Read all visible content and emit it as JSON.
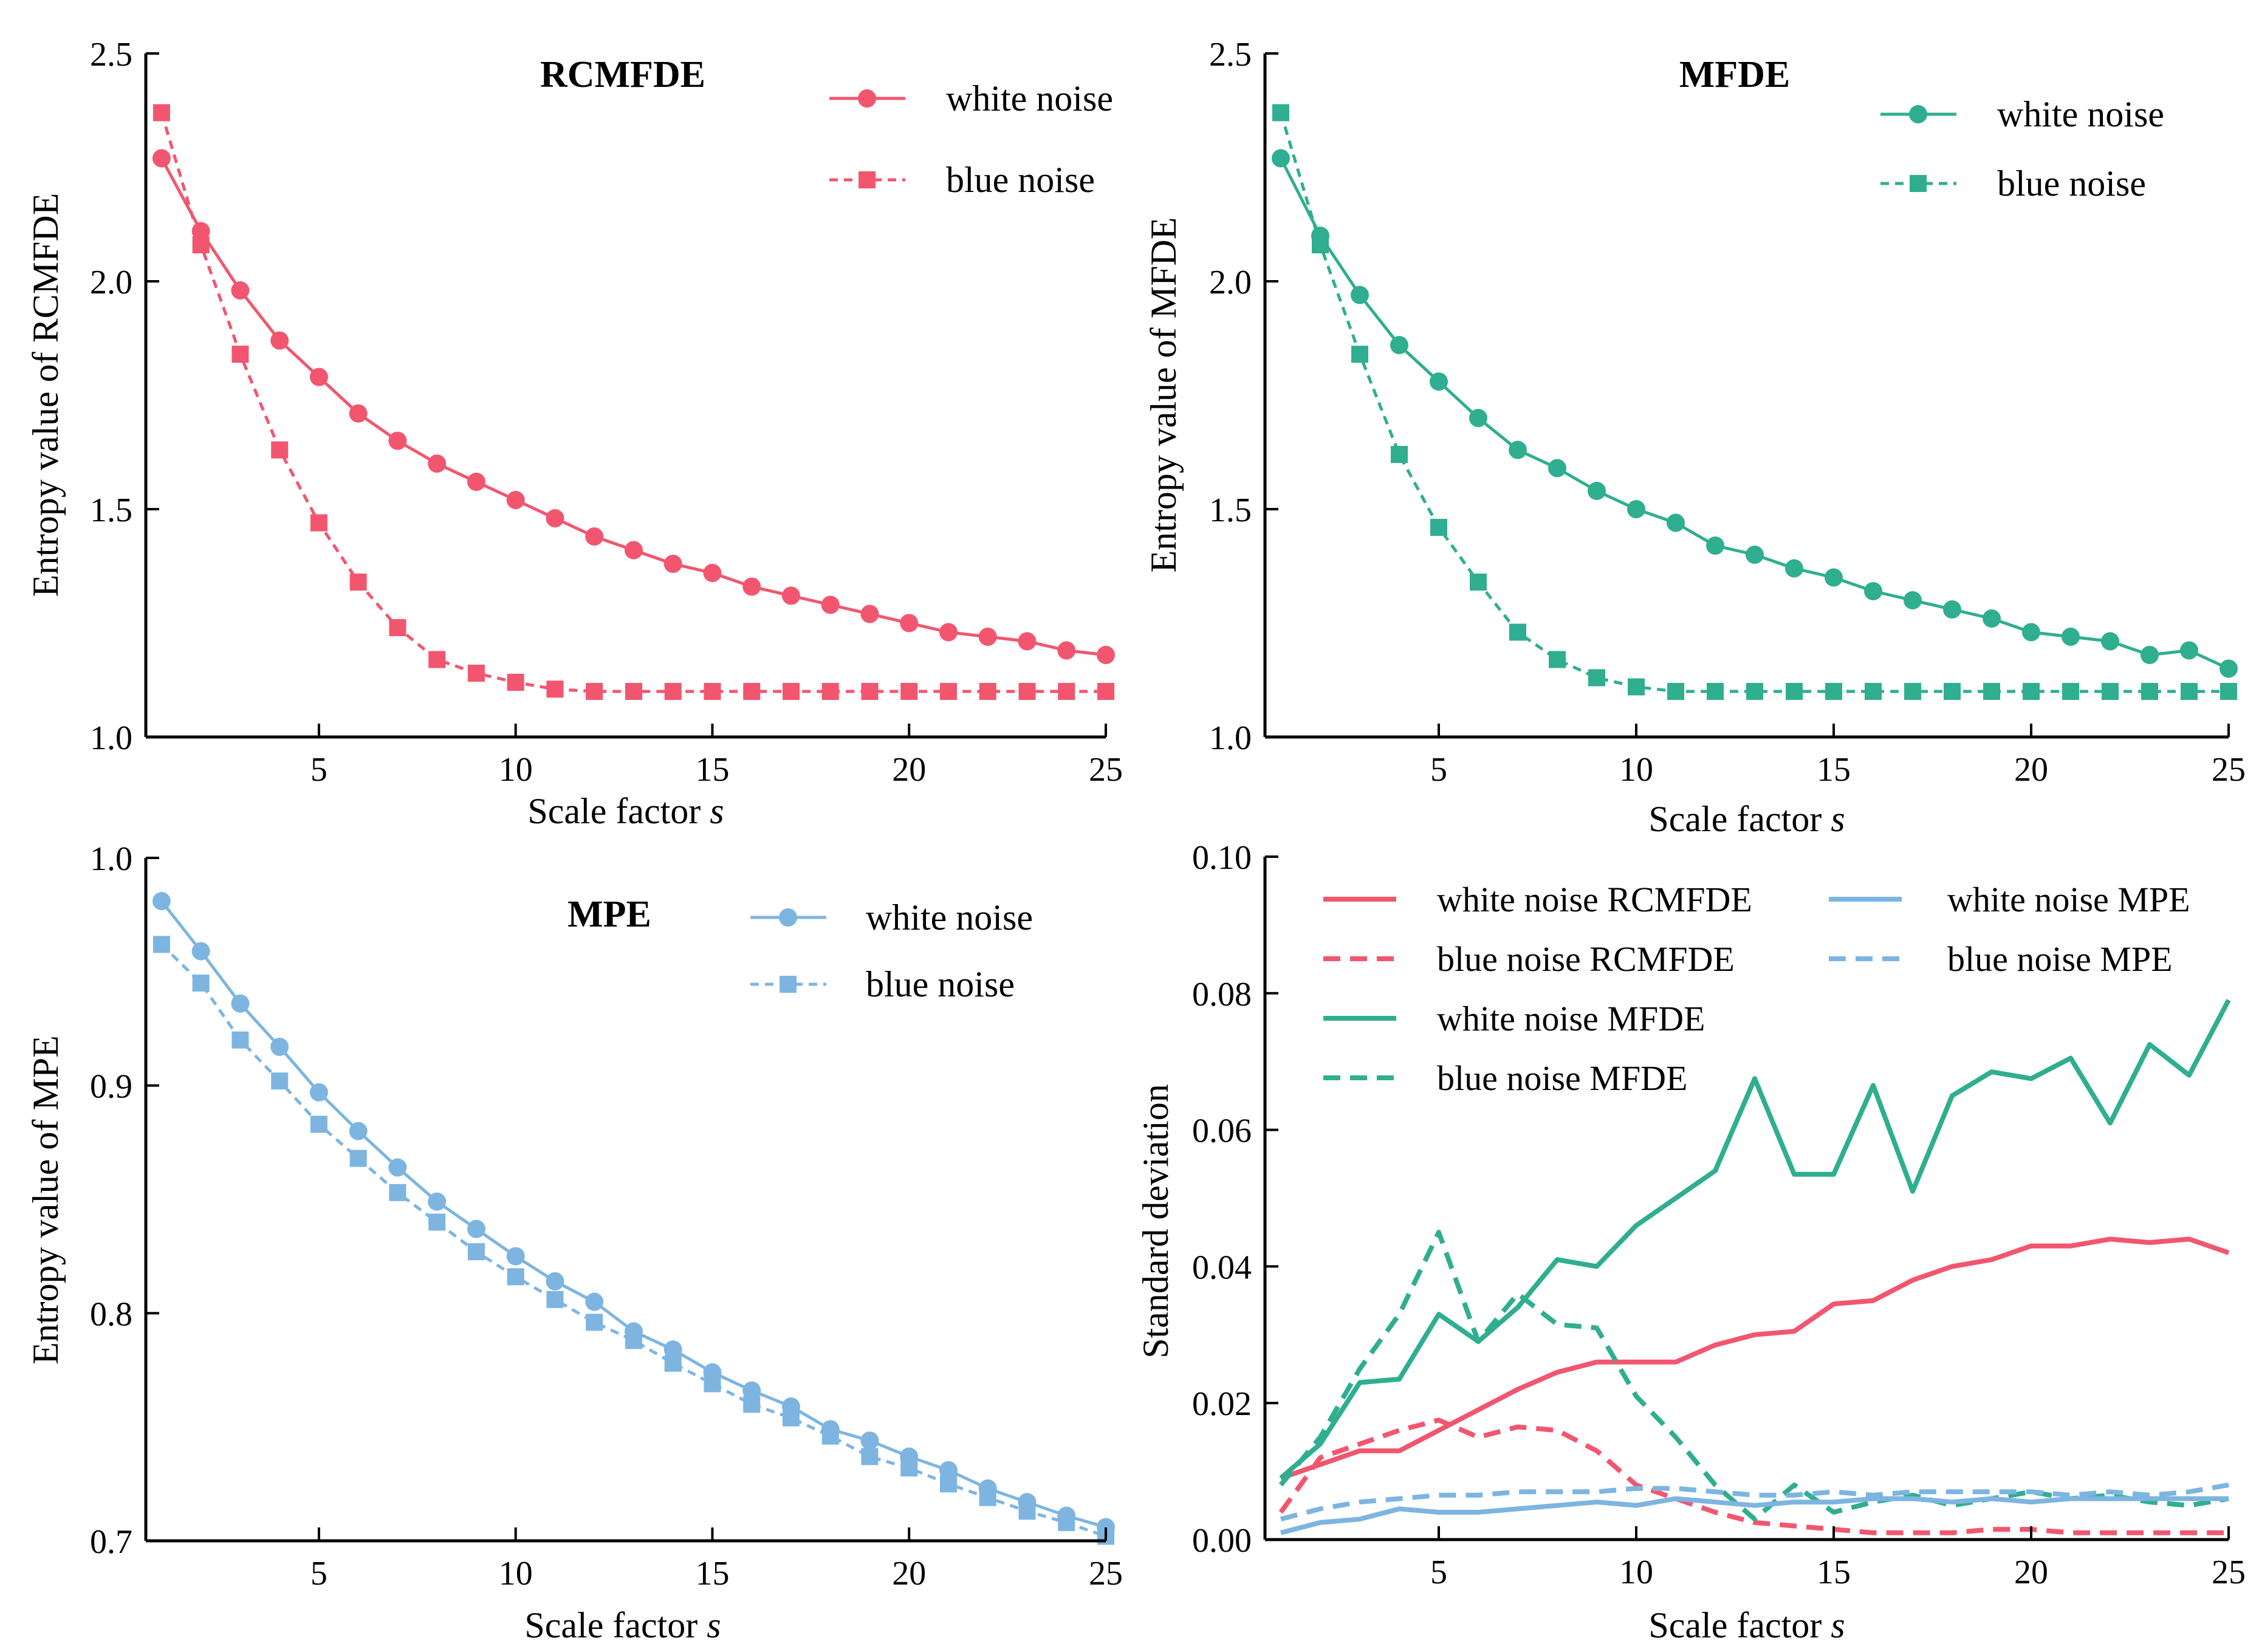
{
  "colors": {
    "rcmfde": "#f2566f",
    "mfde": "#2fae90",
    "mpe": "#7db5e0"
  },
  "chart_data": [
    {
      "id": "rcmfde",
      "type": "line",
      "title": "RCMFDE",
      "xlabel": "Scale factor",
      "xlabel_var": "s",
      "ylabel": "Entropy value of RCMFDE",
      "xlim": [
        0.6,
        25
      ],
      "ylim": [
        1.0,
        2.5
      ],
      "xticks": [
        5,
        10,
        15,
        20,
        25
      ],
      "yticks": [
        "1.0",
        "1.5",
        "2.0",
        "2.5"
      ],
      "x": [
        1,
        2,
        3,
        4,
        5,
        6,
        7,
        8,
        9,
        10,
        11,
        12,
        13,
        14,
        15,
        16,
        17,
        18,
        19,
        20,
        21,
        22,
        23,
        24,
        25
      ],
      "series": [
        {
          "name": "white noise",
          "marker": "circle",
          "dash": false,
          "values": [
            2.27,
            2.11,
            1.98,
            1.87,
            1.79,
            1.71,
            1.65,
            1.6,
            1.56,
            1.52,
            1.48,
            1.44,
            1.41,
            1.38,
            1.36,
            1.33,
            1.31,
            1.29,
            1.27,
            1.25,
            1.23,
            1.22,
            1.21,
            1.19,
            1.18
          ]
        },
        {
          "name": "blue noise",
          "marker": "square",
          "dash": true,
          "values": [
            2.37,
            2.08,
            1.84,
            1.63,
            1.47,
            1.34,
            1.24,
            1.17,
            1.14,
            1.12,
            1.105,
            1.1,
            1.1,
            1.1,
            1.1,
            1.1,
            1.1,
            1.1,
            1.1,
            1.1,
            1.1,
            1.1,
            1.1,
            1.1,
            1.1
          ]
        }
      ]
    },
    {
      "id": "mfde",
      "type": "line",
      "title": "MFDE",
      "xlabel": "Scale factor",
      "xlabel_var": "s",
      "ylabel": "Entropy value of MFDE",
      "xlim": [
        0.6,
        25
      ],
      "ylim": [
        1.0,
        2.5
      ],
      "xticks": [
        5,
        10,
        15,
        20,
        25
      ],
      "yticks": [
        "1.0",
        "1.5",
        "2.0",
        "2.5"
      ],
      "x": [
        1,
        2,
        3,
        4,
        5,
        6,
        7,
        8,
        9,
        10,
        11,
        12,
        13,
        14,
        15,
        16,
        17,
        18,
        19,
        20,
        21,
        22,
        23,
        24,
        25
      ],
      "series": [
        {
          "name": "white noise",
          "marker": "circle",
          "dash": false,
          "values": [
            2.27,
            2.1,
            1.97,
            1.86,
            1.78,
            1.7,
            1.63,
            1.59,
            1.54,
            1.5,
            1.47,
            1.42,
            1.4,
            1.37,
            1.35,
            1.32,
            1.3,
            1.28,
            1.26,
            1.23,
            1.22,
            1.21,
            1.18,
            1.19,
            1.15
          ]
        },
        {
          "name": "blue noise",
          "marker": "square",
          "dash": true,
          "values": [
            2.37,
            2.08,
            1.84,
            1.62,
            1.46,
            1.34,
            1.23,
            1.17,
            1.13,
            1.11,
            1.1,
            1.1,
            1.1,
            1.1,
            1.1,
            1.1,
            1.1,
            1.1,
            1.1,
            1.1,
            1.1,
            1.1,
            1.1,
            1.1,
            1.1
          ]
        }
      ]
    },
    {
      "id": "mpe",
      "type": "line",
      "title": "MPE",
      "xlabel": "Scale factor",
      "xlabel_var": "s",
      "ylabel": "Entropy value of MPE",
      "xlim": [
        0.6,
        25
      ],
      "ylim": [
        0.7,
        1.0
      ],
      "xticks": [
        5,
        10,
        15,
        20,
        25
      ],
      "yticks": [
        "0.7",
        "0.8",
        "0.9",
        "1.0"
      ],
      "x": [
        1,
        2,
        3,
        4,
        5,
        6,
        7,
        8,
        9,
        10,
        11,
        12,
        13,
        14,
        15,
        16,
        17,
        18,
        19,
        20,
        21,
        22,
        23,
        24,
        25
      ],
      "series": [
        {
          "name": "white noise",
          "marker": "circle",
          "dash": false,
          "values": [
            0.981,
            0.959,
            0.936,
            0.917,
            0.897,
            0.88,
            0.864,
            0.849,
            0.837,
            0.825,
            0.814,
            0.805,
            0.792,
            0.784,
            0.774,
            0.766,
            0.759,
            0.749,
            0.744,
            0.737,
            0.731,
            0.723,
            0.717,
            0.711,
            0.706
          ]
        },
        {
          "name": "blue noise",
          "marker": "square",
          "dash": true,
          "values": [
            0.962,
            0.945,
            0.92,
            0.902,
            0.883,
            0.868,
            0.853,
            0.84,
            0.827,
            0.816,
            0.806,
            0.796,
            0.788,
            0.778,
            0.769,
            0.76,
            0.754,
            0.746,
            0.737,
            0.732,
            0.725,
            0.719,
            0.713,
            0.708,
            0.702
          ]
        }
      ]
    },
    {
      "id": "std",
      "type": "line",
      "title": "",
      "xlabel": "Scale factor",
      "xlabel_var": "s",
      "ylabel": "Standard deviation",
      "xlim": [
        0.6,
        25
      ],
      "ylim": [
        0,
        0.1
      ],
      "xticks": [
        5,
        10,
        15,
        20,
        25
      ],
      "yticks": [
        "0.00",
        "0.02",
        "0.04",
        "0.06",
        "0.08",
        "0.10"
      ],
      "x": [
        1,
        2,
        3,
        4,
        5,
        6,
        7,
        8,
        9,
        10,
        11,
        12,
        13,
        14,
        15,
        16,
        17,
        18,
        19,
        20,
        21,
        22,
        23,
        24,
        25
      ],
      "series": [
        {
          "name": "white noise RCMFDE",
          "color_key": "rcmfde",
          "dash": false,
          "values": [
            0.009,
            0.011,
            0.013,
            0.013,
            0.016,
            0.019,
            0.022,
            0.0245,
            0.026,
            0.026,
            0.026,
            0.0285,
            0.03,
            0.0305,
            0.0345,
            0.035,
            0.038,
            0.04,
            0.041,
            0.043,
            0.043,
            0.044,
            0.0435,
            0.044,
            0.042
          ]
        },
        {
          "name": "blue noise RCMFDE",
          "color_key": "rcmfde",
          "dash": true,
          "values": [
            0.004,
            0.012,
            0.014,
            0.016,
            0.0175,
            0.015,
            0.0165,
            0.016,
            0.013,
            0.008,
            0.006,
            0.004,
            0.0025,
            0.002,
            0.0015,
            0.001,
            0.001,
            0.001,
            0.0015,
            0.0015,
            0.001,
            0.001,
            0.001,
            0.001,
            0.001
          ]
        },
        {
          "name": "white noise MFDE",
          "color_key": "mfde",
          "dash": false,
          "values": [
            0.009,
            0.014,
            0.023,
            0.0235,
            0.033,
            0.029,
            0.034,
            0.041,
            0.04,
            0.046,
            0.05,
            0.054,
            0.0675,
            0.0535,
            0.0535,
            0.0665,
            0.051,
            0.065,
            0.0685,
            0.0675,
            0.0705,
            0.061,
            0.0725,
            0.068,
            0.079
          ]
        },
        {
          "name": "blue noise MFDE",
          "color_key": "mfde",
          "dash": true,
          "values": [
            0.008,
            0.015,
            0.025,
            0.033,
            0.045,
            0.029,
            0.036,
            0.0315,
            0.031,
            0.021,
            0.015,
            0.008,
            0.003,
            0.008,
            0.004,
            0.0055,
            0.0065,
            0.005,
            0.006,
            0.007,
            0.006,
            0.0065,
            0.0055,
            0.005,
            0.006
          ]
        },
        {
          "name": "white noise MPE",
          "color_key": "mpe",
          "dash": false,
          "values": [
            0.001,
            0.0025,
            0.003,
            0.0045,
            0.004,
            0.004,
            0.0045,
            0.005,
            0.0055,
            0.005,
            0.006,
            0.0055,
            0.005,
            0.0055,
            0.0055,
            0.006,
            0.006,
            0.0055,
            0.006,
            0.0055,
            0.006,
            0.006,
            0.006,
            0.006,
            0.006
          ]
        },
        {
          "name": "blue noise MPE",
          "color_key": "mpe",
          "dash": true,
          "values": [
            0.003,
            0.0045,
            0.0055,
            0.006,
            0.0065,
            0.0065,
            0.007,
            0.007,
            0.007,
            0.0075,
            0.0075,
            0.007,
            0.0065,
            0.0065,
            0.007,
            0.0065,
            0.007,
            0.007,
            0.007,
            0.007,
            0.0065,
            0.007,
            0.0065,
            0.007,
            0.008
          ]
        }
      ]
    }
  ]
}
